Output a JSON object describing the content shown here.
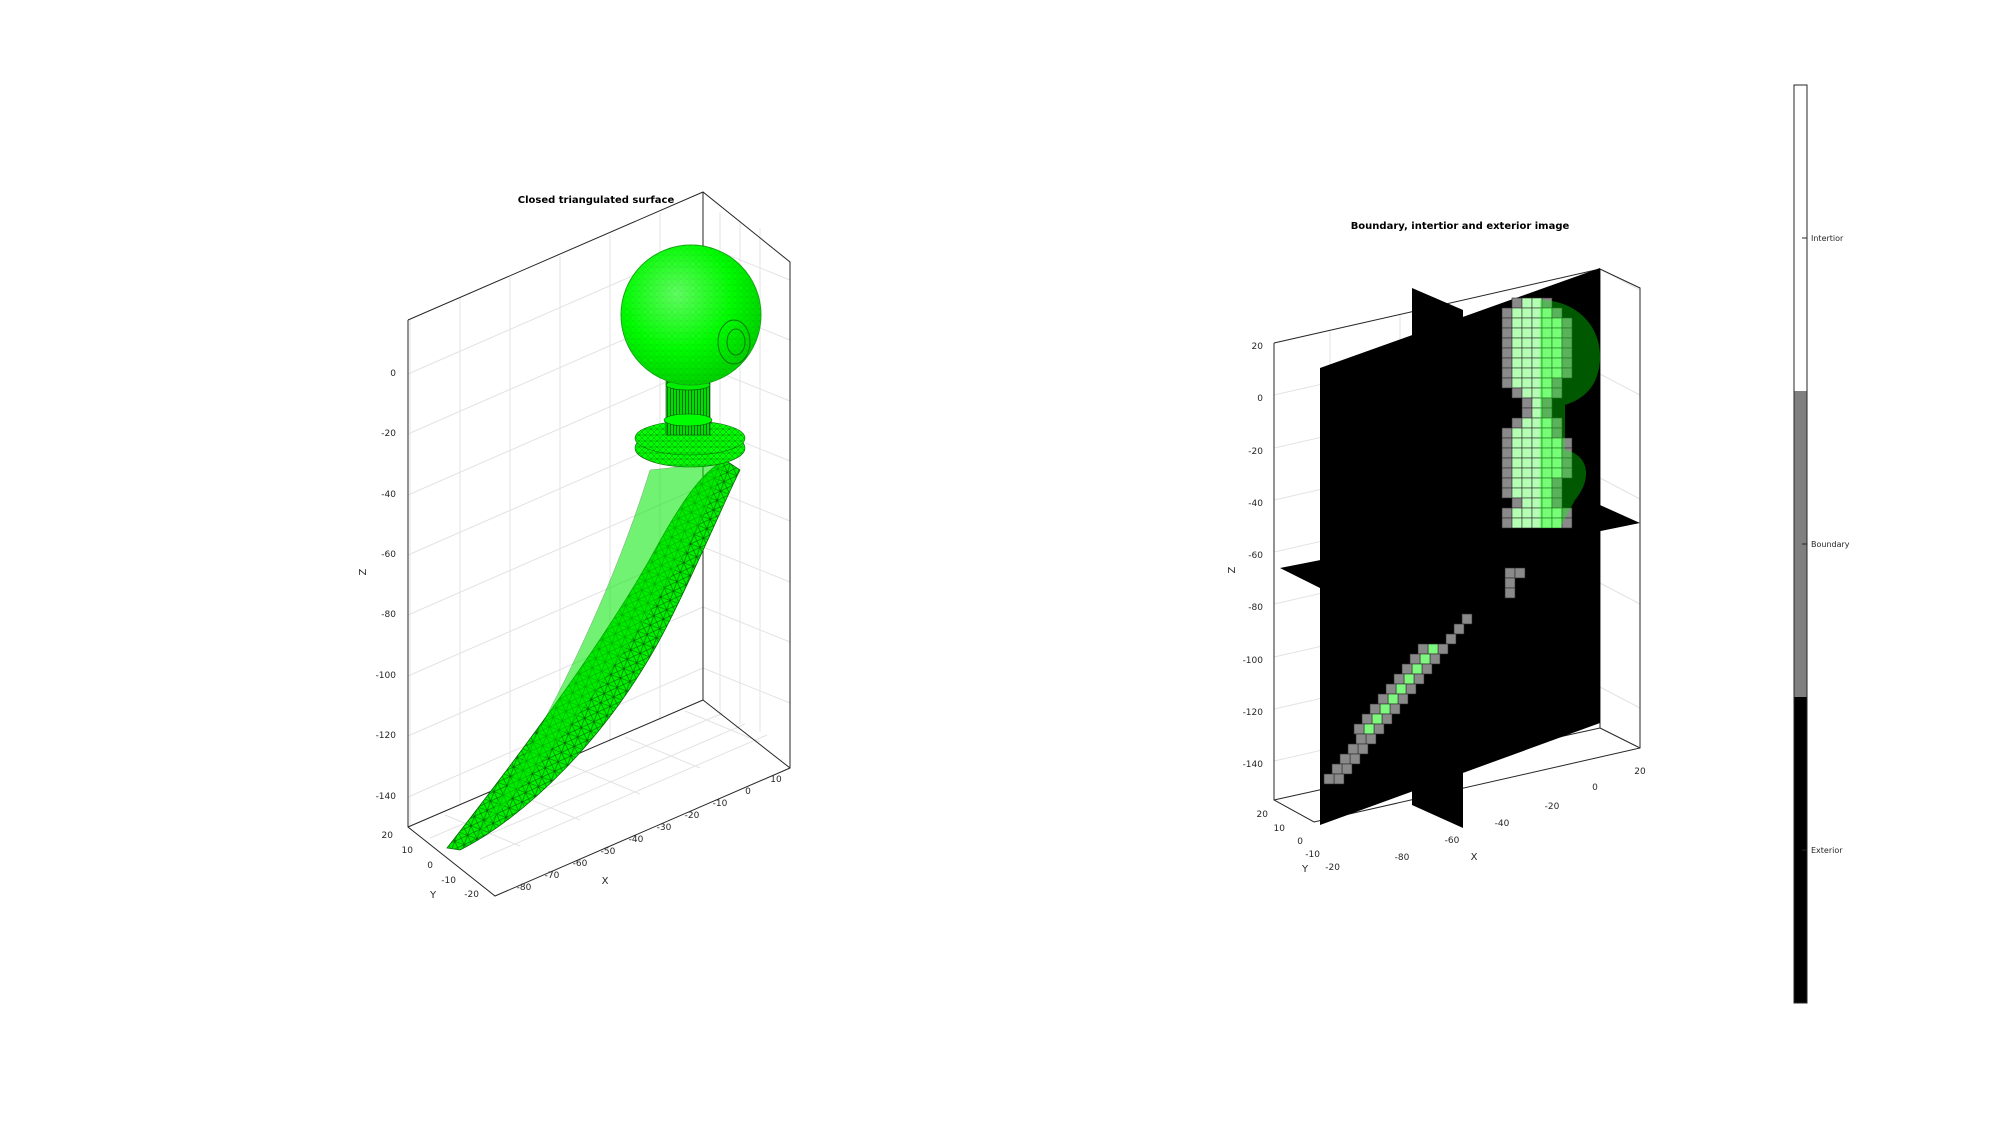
{
  "chart_data": [
    {
      "type": "surface",
      "title": "Closed triangulated surface",
      "xlabel": "X",
      "ylabel": "Y",
      "zlabel": "Z",
      "x_ticks": [
        "-80",
        "-70",
        "-60",
        "-50",
        "-40",
        "-30",
        "-20",
        "-10",
        "0",
        "10"
      ],
      "y_ticks": [
        "20",
        "10",
        "0",
        "-10",
        "-20"
      ],
      "z_ticks": [
        "0",
        "-20",
        "-40",
        "-60",
        "-80",
        "-100",
        "-120",
        "-140"
      ],
      "grid": true,
      "surface_color": "#00ff00",
      "edge_color": "#0a4a0a"
    },
    {
      "type": "image_slices",
      "title": "Boundary, intertior and exterior image",
      "xlabel": "X",
      "ylabel": "Y",
      "zlabel": "Z",
      "x_ticks": [
        "-80",
        "-60",
        "-40",
        "-20",
        "0",
        "20"
      ],
      "y_ticks": [
        "20",
        "10",
        "0",
        "-10",
        "-20"
      ],
      "z_ticks": [
        "20",
        "0",
        "-20",
        "-40",
        "-60",
        "-80",
        "-100",
        "-120",
        "-140"
      ],
      "grid": true,
      "colorbar": {
        "labels": [
          "Intertior",
          "Boundary",
          "Exterior"
        ],
        "colors": [
          "#ffffff",
          "#808080",
          "#000000"
        ]
      }
    }
  ]
}
